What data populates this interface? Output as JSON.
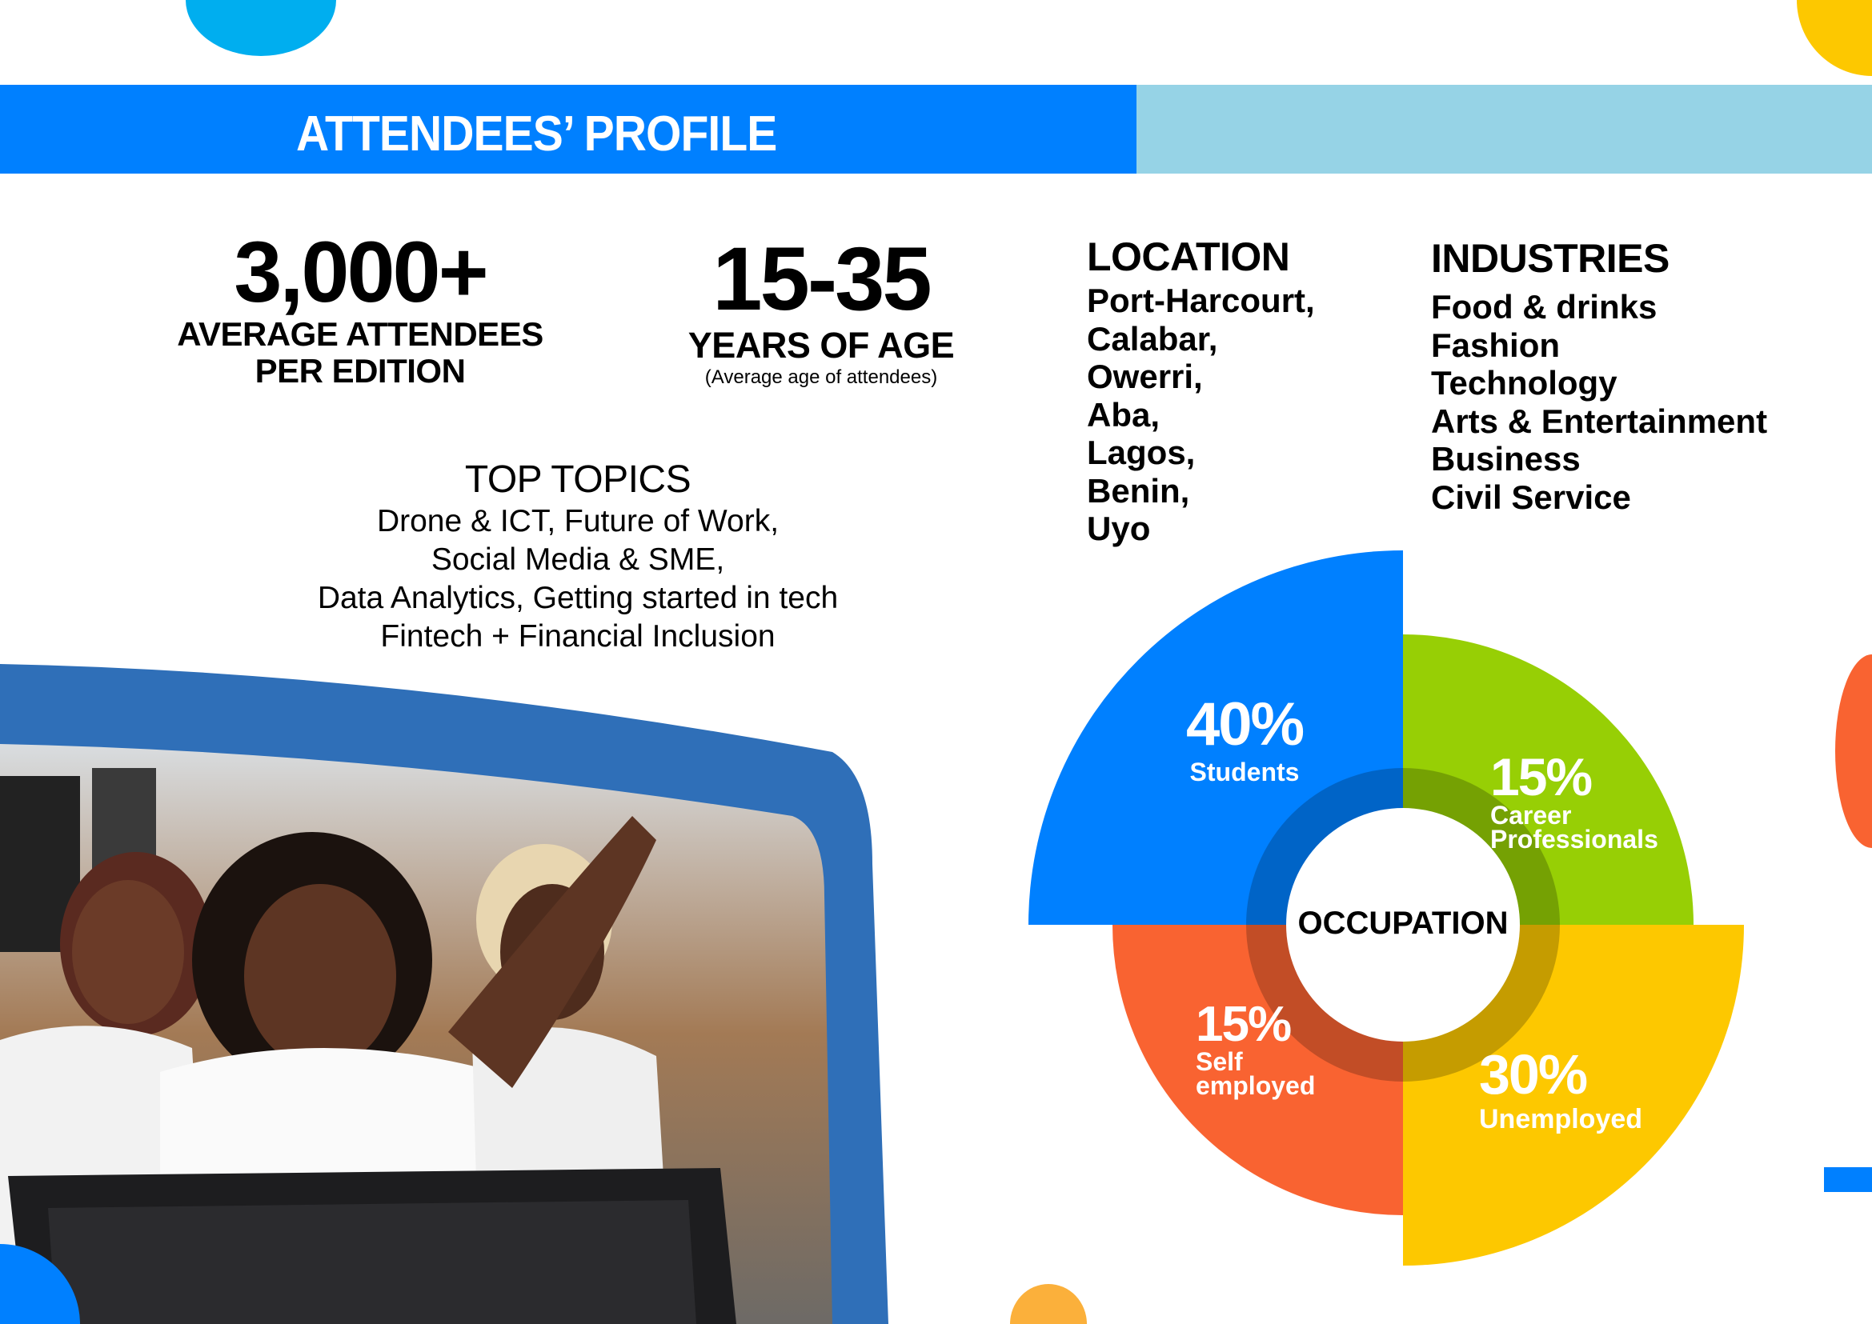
{
  "header": {
    "title": "ATTENDEES’ PROFILE"
  },
  "stats": {
    "attendees": {
      "value": "3,000+",
      "label_line1": "AVERAGE ATTENDEES",
      "label_line2": "PER EDITION"
    },
    "age": {
      "value": "15-35",
      "label": "YEARS OF AGE",
      "note": "(Average age of attendees)"
    }
  },
  "top_topics": {
    "heading": "TOP TOPICS",
    "lines": [
      "Drone & ICT, Future of Work,",
      "Social Media & SME,",
      "Data Analytics, Getting started in tech",
      "Fintech + Financial Inclusion"
    ]
  },
  "location": {
    "heading": "LOCATION",
    "items": [
      "Port-Harcourt,",
      "Calabar,",
      "Owerri,",
      "Aba,",
      "Lagos,",
      "Benin,",
      "Uyo"
    ]
  },
  "industries": {
    "heading": "INDUSTRIES",
    "items": [
      "Food & drinks",
      "Fashion",
      "Technology",
      "Arts & Entertainment",
      "Business",
      "Civil Service"
    ]
  },
  "colors": {
    "blue": "#0080ff",
    "light_blue": "#96d3e6",
    "green": "#97cf05",
    "yellow": "#fdc800",
    "orange": "#f96331",
    "cyan": "#00aeef"
  },
  "chart_data": {
    "type": "pie",
    "title": "OCCUPATION",
    "slices": [
      {
        "label": "Students",
        "value": 40,
        "display": "40%",
        "color": "#0080ff"
      },
      {
        "label": "Career Professionals",
        "value": 15,
        "display": "15%",
        "color": "#97cf05"
      },
      {
        "label": "Unemployed",
        "value": 30,
        "display": "30%",
        "color": "#fdc800"
      },
      {
        "label": "Self employed",
        "value": 15,
        "display": "15%",
        "color": "#f96331"
      }
    ]
  },
  "chart_labels": {
    "career_line1": "Career",
    "career_line2": "Professionals",
    "self_line1": "Self",
    "self_line2": "employed"
  }
}
